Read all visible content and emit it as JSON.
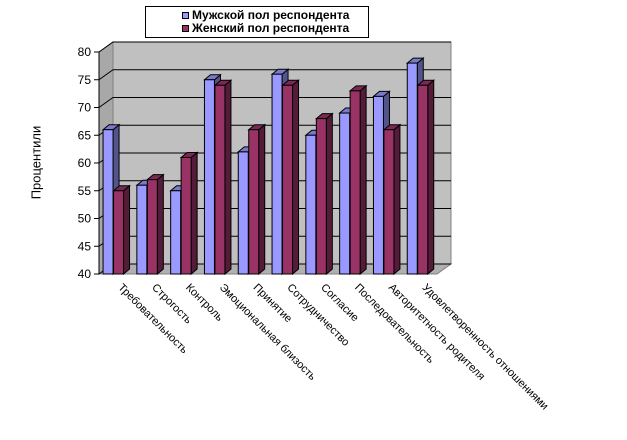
{
  "chart_data": {
    "type": "bar",
    "ylabel": "Процентили",
    "ylim": [
      40,
      80
    ],
    "yticks": [
      "40",
      "45",
      "50",
      "55",
      "60",
      "65",
      "70",
      "75",
      "80"
    ],
    "categories": [
      "Требовательность",
      "Строгость",
      "Контроль",
      "Эмоциональная близость",
      "Принятие",
      "Сотрудничество",
      "Согласие",
      "Последовательность",
      "Авторитетность родителя",
      "Удовлетворенность отношениями"
    ],
    "series": [
      {
        "name": "Мужской пол респондента",
        "values": [
          66,
          56,
          55,
          75,
          62,
          76,
          65,
          69,
          72,
          78
        ],
        "color": "#9999ff"
      },
      {
        "name": "Женский пол респондента",
        "values": [
          55,
          57,
          61,
          74,
          66,
          74,
          68,
          73,
          66,
          74
        ],
        "color": "#993366"
      }
    ],
    "grid": true,
    "legend": "top"
  }
}
